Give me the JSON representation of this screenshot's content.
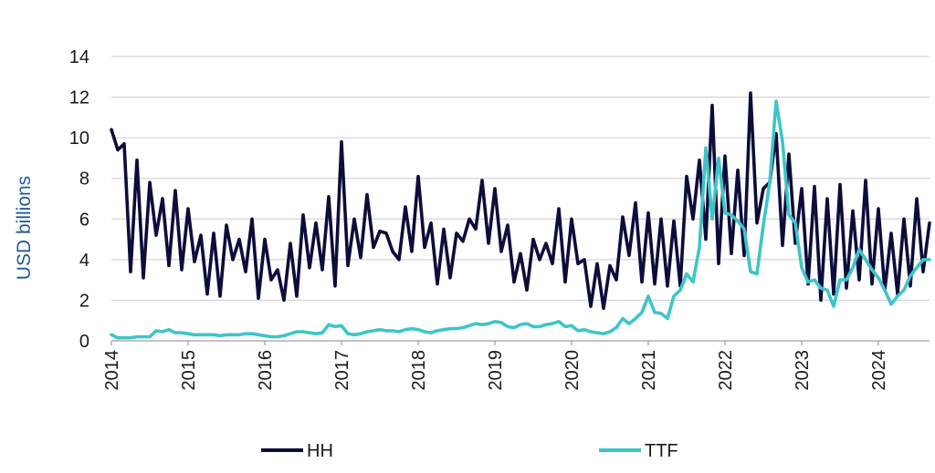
{
  "chart_data": {
    "type": "line",
    "title": "",
    "xlabel": "",
    "ylabel": "USD billions",
    "ylim": [
      0,
      14
    ],
    "xlim": [
      2014.0,
      2024.667
    ],
    "yticks": [
      0,
      2,
      4,
      6,
      8,
      10,
      12,
      14
    ],
    "xticks": [
      "2014",
      "2015",
      "2016",
      "2017",
      "2018",
      "2019",
      "2020",
      "2021",
      "2022",
      "2023",
      "2024"
    ],
    "grid": "horizontal",
    "legend_position": "bottom",
    "x_start": "2014-01",
    "x_frequency": "monthly",
    "series": [
      {
        "name": "HH",
        "color": "#0d0d3b",
        "values": [
          10.4,
          9.4,
          9.7,
          3.4,
          8.9,
          3.1,
          7.8,
          5.2,
          7.0,
          3.7,
          7.4,
          3.5,
          6.5,
          3.9,
          5.2,
          2.3,
          5.3,
          2.2,
          5.7,
          4.0,
          5.0,
          3.4,
          6.0,
          2.1,
          5.0,
          3.0,
          3.5,
          2.0,
          4.8,
          2.2,
          6.2,
          3.6,
          5.8,
          3.5,
          7.1,
          2.7,
          9.8,
          3.7,
          6.0,
          4.1,
          7.2,
          4.6,
          5.4,
          5.3,
          4.4,
          4.0,
          6.6,
          4.4,
          8.1,
          4.6,
          5.8,
          2.8,
          5.5,
          3.1,
          5.3,
          4.9,
          6.0,
          5.5,
          7.9,
          4.8,
          7.5,
          4.4,
          5.7,
          2.9,
          4.3,
          2.5,
          5.0,
          4.0,
          4.8,
          3.8,
          6.5,
          2.9,
          6.0,
          3.8,
          4.0,
          1.7,
          3.8,
          1.6,
          3.7,
          3.0,
          6.1,
          4.2,
          6.8,
          2.9,
          6.3,
          2.8,
          6.0,
          2.7,
          5.9,
          2.7,
          8.1,
          6.0,
          8.9,
          5.0,
          11.6,
          3.8,
          9.1,
          4.3,
          8.4,
          4.2,
          12.2,
          5.8,
          7.5,
          7.8,
          10.2,
          4.7,
          9.2,
          4.8,
          7.5,
          2.8,
          7.6,
          2.0,
          7.0,
          2.3,
          7.7,
          2.6,
          6.4,
          3.0,
          7.9,
          2.8,
          6.5,
          2.5,
          5.3,
          2.3,
          6.0,
          2.7,
          7.0,
          3.4,
          5.8
        ]
      },
      {
        "name": "TTF",
        "color": "#3ec5c9",
        "values": [
          0.3,
          0.15,
          0.15,
          0.15,
          0.2,
          0.2,
          0.2,
          0.5,
          0.45,
          0.55,
          0.4,
          0.4,
          0.35,
          0.3,
          0.3,
          0.3,
          0.3,
          0.25,
          0.3,
          0.3,
          0.3,
          0.35,
          0.35,
          0.3,
          0.25,
          0.2,
          0.2,
          0.25,
          0.35,
          0.45,
          0.45,
          0.4,
          0.35,
          0.4,
          0.8,
          0.7,
          0.75,
          0.35,
          0.3,
          0.35,
          0.45,
          0.5,
          0.55,
          0.5,
          0.5,
          0.45,
          0.55,
          0.6,
          0.55,
          0.45,
          0.4,
          0.5,
          0.55,
          0.6,
          0.6,
          0.65,
          0.75,
          0.85,
          0.8,
          0.85,
          0.95,
          0.9,
          0.7,
          0.65,
          0.8,
          0.85,
          0.7,
          0.7,
          0.8,
          0.85,
          0.95,
          0.7,
          0.75,
          0.5,
          0.55,
          0.45,
          0.4,
          0.35,
          0.45,
          0.65,
          1.1,
          0.85,
          1.1,
          1.4,
          2.2,
          1.4,
          1.35,
          1.1,
          2.2,
          2.5,
          3.3,
          2.9,
          4.6,
          9.5,
          6.0,
          9.0,
          6.3,
          6.2,
          5.9,
          5.5,
          3.4,
          3.3,
          5.7,
          7.8,
          11.8,
          9.8,
          6.2,
          5.8,
          3.6,
          2.9,
          3.0,
          2.6,
          2.5,
          1.7,
          3.0,
          3.0,
          3.6,
          4.5,
          4.0,
          3.5,
          3.1,
          2.5,
          1.8,
          2.2,
          2.5,
          3.2,
          3.6,
          4.0,
          4.0
        ]
      }
    ]
  }
}
